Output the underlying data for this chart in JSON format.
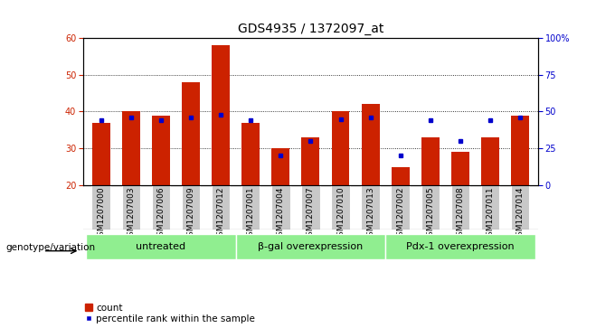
{
  "title": "GDS4935 / 1372097_at",
  "samples": [
    "GSM1207000",
    "GSM1207003",
    "GSM1207006",
    "GSM1207009",
    "GSM1207012",
    "GSM1207001",
    "GSM1207004",
    "GSM1207007",
    "GSM1207010",
    "GSM1207013",
    "GSM1207002",
    "GSM1207005",
    "GSM1207008",
    "GSM1207011",
    "GSM1207014"
  ],
  "counts": [
    37,
    40,
    39,
    48,
    58,
    37,
    30,
    33,
    40,
    42,
    25,
    33,
    29,
    33,
    39
  ],
  "percentiles": [
    44,
    46,
    44,
    46,
    48,
    44,
    20,
    30,
    45,
    46,
    20,
    44,
    30,
    44,
    46
  ],
  "groups": [
    {
      "label": "untreated",
      "start": 0,
      "end": 5
    },
    {
      "label": "β-gal overexpression",
      "start": 5,
      "end": 10
    },
    {
      "label": "Pdx-1 overexpression",
      "start": 10,
      "end": 15
    }
  ],
  "ylim_left": [
    20,
    60
  ],
  "ylim_right": [
    0,
    100
  ],
  "yticks_left": [
    20,
    30,
    40,
    50,
    60
  ],
  "yticks_right": [
    0,
    25,
    50,
    75,
    100
  ],
  "ytick_labels_right": [
    "0",
    "25",
    "50",
    "75",
    "100%"
  ],
  "bar_color": "#cc2200",
  "dot_color": "#0000cc",
  "bar_width": 0.6,
  "group_label_prefix": "genotype/variation",
  "legend_count_label": "count",
  "legend_percentile_label": "percentile rank within the sample",
  "bg_group": "#90ee90",
  "bg_xtick": "#c8c8c8",
  "title_fontsize": 10,
  "tick_fontsize": 7,
  "sample_fontsize": 6.5,
  "group_fontsize": 8
}
